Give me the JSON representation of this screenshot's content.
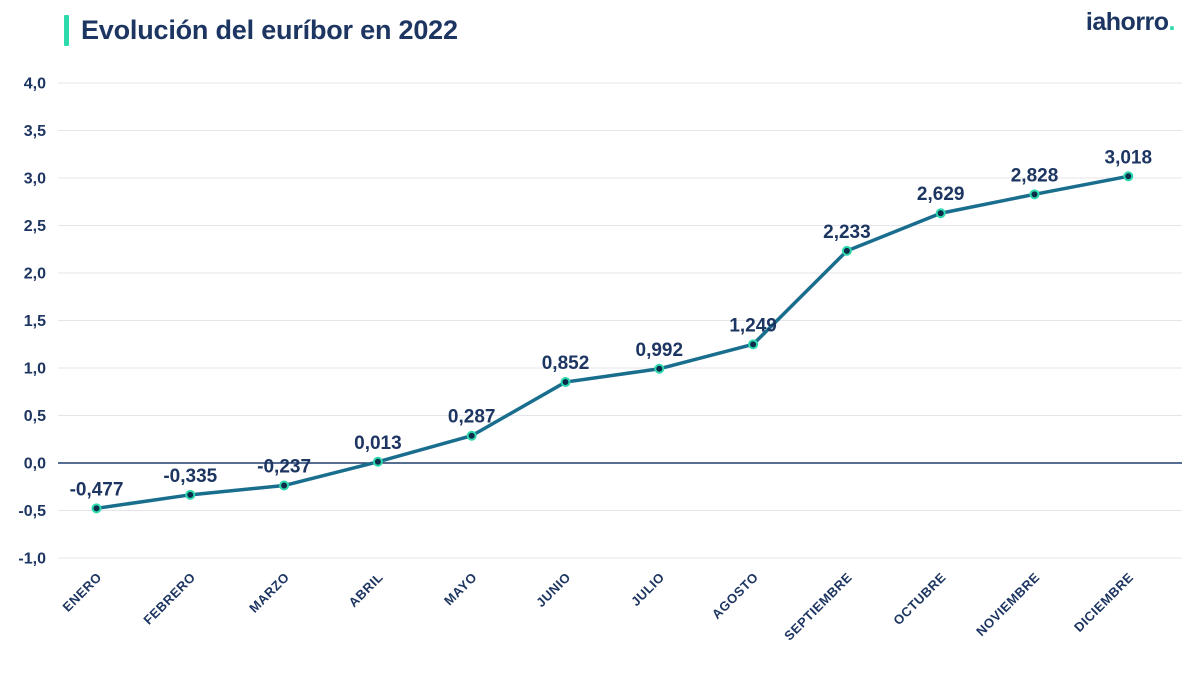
{
  "header": {
    "title": "Evolución del euríbor en 2022",
    "logo_text": "iahorro",
    "logo_dot": "."
  },
  "colors": {
    "navy_text": "#1d3561",
    "teal_accent": "#2ed9ac",
    "series_line": "#196e8e",
    "marker_fill": "#0d2b4b",
    "marker_ring": "#2fd9ad",
    "gridline": "#e4e4ea",
    "zero_line": "#1e3f6e",
    "background": "#ffffff"
  },
  "chart_data": {
    "type": "line",
    "title": "Evolución del euríbor en 2022",
    "series_name": "Euríbor",
    "categories": [
      "ENERO",
      "FEBRERO",
      "MARZO",
      "ABRIL",
      "MAYO",
      "JUNIO",
      "JULIO",
      "AGOSTO",
      "SEPTIEMBRE",
      "OCTUBRE",
      "NOVIEMBRE",
      "DICIEMBRE"
    ],
    "values": [
      -0.477,
      -0.335,
      -0.237,
      0.013,
      0.287,
      0.852,
      0.992,
      1.249,
      2.233,
      2.629,
      2.828,
      3.018
    ],
    "value_labels": [
      "-0,477",
      "-0,335",
      "-0,237",
      "0,013",
      "0,287",
      "0,852",
      "0,992",
      "1,249",
      "2,233",
      "2,629",
      "2,828",
      "3,018"
    ],
    "xlabel": "",
    "ylabel": "",
    "ylim": [
      -1.0,
      4.0
    ],
    "yticks": [
      4.0,
      3.5,
      3.0,
      2.5,
      2.0,
      1.5,
      1.0,
      0.5,
      0.0,
      -0.5,
      -1.0
    ],
    "ytick_labels": [
      "4,0",
      "3,5",
      "3,0",
      "2,5",
      "2,0",
      "1,5",
      "1,0",
      "0,5",
      "0,0",
      "-0,5",
      "-1,0"
    ],
    "grid": true,
    "legend": "none",
    "x_labels_rotation_deg": -45,
    "data_labels_shown": true
  }
}
